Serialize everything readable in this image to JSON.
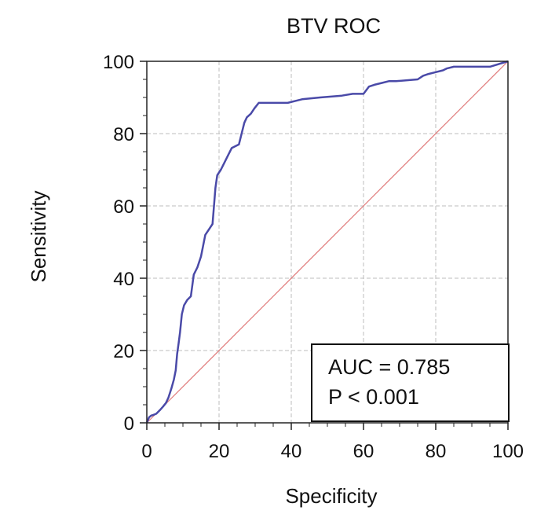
{
  "chart_data": {
    "type": "line",
    "title": "BTV ROC",
    "xlabel": "Specificity",
    "ylabel": "Sensitivity",
    "xlim": [
      0,
      100
    ],
    "ylim": [
      0,
      100
    ],
    "xticks": [
      "0",
      "20",
      "40",
      "60",
      "80",
      "100"
    ],
    "yticks": [
      "0",
      "20",
      "40",
      "60",
      "80",
      "100"
    ],
    "grid": true,
    "series": [
      {
        "name": "ROC curve",
        "color": "#4a4aa8",
        "x": [
          0,
          0.6,
          1.2,
          1.8,
          2.6,
          3.6,
          4.5,
          5.3,
          6.0,
          6.8,
          7.5,
          8.0,
          8.4,
          8.8,
          9.2,
          9.7,
          10.3,
          11.2,
          12.2,
          13.0,
          14.0,
          15.0,
          16.2,
          17.2,
          18.2,
          19.0,
          19.5,
          20.5,
          21.5,
          22.5,
          23.5,
          25.5,
          27.0,
          27.7,
          28.8,
          29.8,
          31.0,
          35.0,
          39.0,
          43.0,
          48.0,
          54.0,
          57.0,
          60.0,
          61.5,
          63.0,
          65.0,
          67.0,
          69.0,
          75.0,
          76.5,
          78.0,
          80.0,
          82.0,
          83.0,
          85.0,
          95.0,
          100.0
        ],
        "y": [
          0,
          1.5,
          2.0,
          2.2,
          2.5,
          3.5,
          4.5,
          5.5,
          7.0,
          9.5,
          12.0,
          14.5,
          19.0,
          22.0,
          25.0,
          30.0,
          32.5,
          34.0,
          35.0,
          41.0,
          43.0,
          46.0,
          52.0,
          53.5,
          55.0,
          65.0,
          68.5,
          70.0,
          72.0,
          74.0,
          76.0,
          77.0,
          83.0,
          84.5,
          85.5,
          87.0,
          88.5,
          88.5,
          88.5,
          89.5,
          90.0,
          90.5,
          91.0,
          91.0,
          93.0,
          93.5,
          94.0,
          94.5,
          94.5,
          95.0,
          96.0,
          96.5,
          97.0,
          97.5,
          98.0,
          98.5,
          98.5,
          100.0
        ]
      },
      {
        "name": "Reference line",
        "color": "#e07a7a",
        "x": [
          0,
          100
        ],
        "y": [
          0,
          100
        ]
      }
    ],
    "annotations": {
      "auc": "AUC = 0.785",
      "p": "P < 0.001"
    },
    "legend": "bottom-right"
  }
}
